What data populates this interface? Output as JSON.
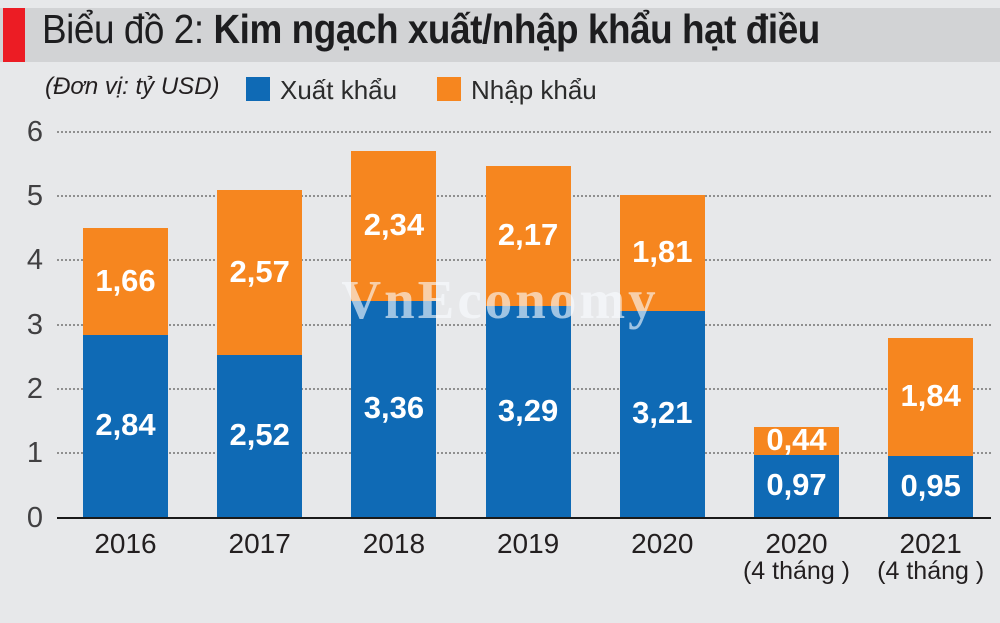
{
  "header": {
    "title_prefix": "Biểu đồ 2: ",
    "title_main": "Kim ngạch xuất/nhập khẩu hạt điều"
  },
  "unit_label": "(Đơn vị: tỷ USD)",
  "legend": [
    {
      "label": "Xuất khẩu",
      "color": "#0f6ab5"
    },
    {
      "label": "Nhập khẩu",
      "color": "#f6861f"
    }
  ],
  "watermark": "VnEconomy",
  "colors": {
    "export_blue": "#0f6ab5",
    "import_orange": "#f6861f",
    "header_band": "#d2d3d5",
    "accent_red": "#ec1c24",
    "background": "#e7e8ea",
    "grid_dots": "#8f8f8f",
    "axis_line": "#1a1a1a"
  },
  "chart_data": {
    "type": "bar",
    "stacked": true,
    "title": "Biểu đồ 2: Kim ngạch xuất/nhập khẩu hạt điều",
    "unit": "tỷ USD",
    "categories": [
      {
        "line1": "2016",
        "line2": ""
      },
      {
        "line1": "2017",
        "line2": ""
      },
      {
        "line1": "2018",
        "line2": ""
      },
      {
        "line1": "2019",
        "line2": ""
      },
      {
        "line1": "2020",
        "line2": ""
      },
      {
        "line1": "2020",
        "line2": "(4 tháng )"
      },
      {
        "line1": "2021",
        "line2": "(4 tháng )"
      }
    ],
    "series": [
      {
        "name": "Xuất khẩu",
        "color": "#0f6ab5",
        "values": [
          2.84,
          2.52,
          3.36,
          3.29,
          3.21,
          0.97,
          0.95
        ],
        "labels": [
          "2,84",
          "2,52",
          "3,36",
          "3,29",
          "3,21",
          "0,97",
          "0,95"
        ]
      },
      {
        "name": "Nhập khẩu",
        "color": "#f6861f",
        "values": [
          1.66,
          2.57,
          2.34,
          2.17,
          1.81,
          0.44,
          1.84
        ],
        "labels": [
          "1,66",
          "2,57",
          "2,34",
          "2,17",
          "1,81",
          "0,44",
          "1,84"
        ]
      }
    ],
    "ylim": [
      0,
      6
    ],
    "yticks": [
      0,
      1,
      2,
      3,
      4,
      5,
      6
    ],
    "ytick_labels": [
      "0",
      "1",
      "2",
      "3",
      "4",
      "5",
      "6"
    ],
    "grid": "horizontal dotted",
    "legend_position": "top"
  }
}
